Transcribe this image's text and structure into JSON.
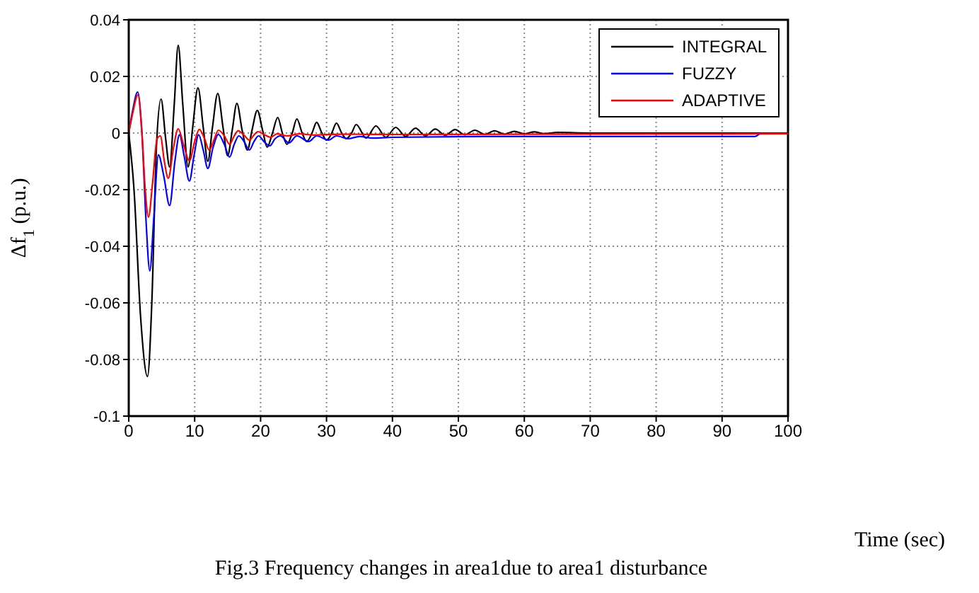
{
  "chart_data": {
    "type": "line",
    "xlabel": "Time (sec)",
    "ylabel": "Δf$_{1}$ (p.u.)",
    "annotations": [
      "Fig.3 Frequency changes in area1due to area1 disturbance"
    ],
    "xlim": [
      0,
      100
    ],
    "xticks": [
      0,
      10,
      20,
      30,
      40,
      50,
      60,
      70,
      80,
      90,
      100
    ],
    "ylim": [
      -0.1,
      0.04
    ],
    "yticks": [
      -0.1,
      -0.08,
      -0.06,
      -0.04,
      -0.02,
      0,
      0.02,
      0.04
    ],
    "grid": true,
    "legend": "top right",
    "line_style": "solid",
    "marker": "none",
    "series": [
      {
        "name": "INTEGRAL",
        "color": "#000000",
        "x": [
          0,
          0.8,
          1.8,
          2.85,
          3.5,
          4.2,
          4.9,
          5.6,
          6.2,
          6.9,
          7.5,
          8.2,
          9.0,
          9.7,
          10.5,
          11.3,
          12.0,
          12.7,
          13.5,
          14.3,
          15.0,
          15.7,
          16.4,
          17.2,
          18.0,
          18.7,
          19.5,
          20.3,
          21.0,
          21.8,
          22.6,
          23.3,
          24.0,
          24.8,
          25.5,
          26.3,
          27.0,
          27.8,
          28.5,
          29.3,
          30.0,
          30.8,
          31.5,
          32.3,
          33.0,
          33.8,
          34.5,
          36,
          37.5,
          39,
          40.5,
          42,
          43.5,
          45,
          46.5,
          48,
          49.5,
          51,
          52.5,
          54,
          55.5,
          57,
          58.5,
          60,
          61.5,
          63,
          65,
          70,
          100
        ],
        "values": [
          0,
          -0.02,
          -0.065,
          -0.086,
          -0.06,
          -0.005,
          0.012,
          -0.002,
          -0.012,
          0.01,
          0.031,
          0.01,
          -0.012,
          0.002,
          0.016,
          0.002,
          -0.01,
          0.002,
          0.014,
          0.002,
          -0.008,
          0.001,
          0.0105,
          0.001,
          -0.006,
          0.001,
          0.008,
          0.001,
          -0.005,
          0,
          0.0055,
          0,
          -0.004,
          0,
          0.005,
          0,
          -0.003,
          0,
          0.0038,
          0,
          -0.0025,
          0,
          0.0035,
          0,
          -0.002,
          0,
          0.003,
          -0.0018,
          0.0025,
          -0.0015,
          0.002,
          -0.0012,
          0.0017,
          -0.001,
          0.0014,
          -0.0008,
          0.0012,
          -0.0006,
          0.001,
          -0.0005,
          0.0008,
          -0.0004,
          0.0006,
          -0.0003,
          0.0004,
          -0.0002,
          0.0002,
          0,
          0
        ]
      },
      {
        "name": "FUZZY",
        "color": "#0000ff",
        "x": [
          0,
          0.6,
          1.35,
          2.0,
          2.6,
          3.2,
          3.8,
          4.5,
          5.3,
          6.2,
          7.0,
          7.7,
          8.4,
          9.2,
          9.9,
          10.6,
          11.3,
          12.0,
          12.8,
          13.6,
          14.5,
          15.3,
          16.0,
          16.7,
          17.5,
          18.3,
          19.0,
          19.7,
          20.5,
          21.4,
          22.2,
          23,
          24.3,
          25.5,
          27.3,
          28.5,
          30.3,
          31.5,
          33.3,
          35,
          37,
          40,
          50,
          60,
          70,
          80,
          95,
          96,
          100
        ],
        "values": [
          0,
          0.008,
          0.0145,
          0,
          -0.03,
          -0.0487,
          -0.03,
          -0.0077,
          -0.015,
          -0.0256,
          -0.01,
          -0.0006,
          -0.008,
          -0.017,
          -0.008,
          -0.0006,
          -0.006,
          -0.0125,
          -0.005,
          -0.0005,
          -0.004,
          -0.0085,
          -0.004,
          -0.001,
          -0.003,
          -0.006,
          -0.003,
          -0.001,
          -0.003,
          -0.0045,
          -0.002,
          -0.001,
          -0.0035,
          -0.001,
          -0.003,
          -0.001,
          -0.0025,
          -0.001,
          -0.002,
          -0.0012,
          -0.0018,
          -0.0015,
          -0.0013,
          -0.0012,
          -0.0012,
          -0.0012,
          -0.0012,
          0,
          0
        ]
      },
      {
        "name": "ADAPTIVE",
        "color": "#ff0000",
        "x": [
          0,
          0.6,
          1.4,
          2.0,
          2.5,
          3.0,
          3.6,
          4.3,
          4.8,
          5.4,
          6.0,
          6.8,
          7.5,
          8.3,
          9.2,
          10.0,
          10.7,
          11.5,
          12.2,
          13.0,
          13.6,
          14.5,
          15.3,
          16,
          16.6,
          17.5,
          18.3,
          19,
          19.6,
          20.5,
          21.5,
          22.5,
          24,
          26,
          28,
          32,
          40,
          60,
          100
        ],
        "values": [
          0,
          0.007,
          0.0135,
          0,
          -0.02,
          -0.0297,
          -0.018,
          -0.002,
          -0.001,
          -0.01,
          -0.016,
          -0.005,
          0.0015,
          -0.004,
          -0.0098,
          -0.003,
          0.0013,
          -0.002,
          -0.006,
          -0.002,
          0.001,
          -0.001,
          -0.004,
          -0.001,
          0.0008,
          -0.0008,
          -0.0025,
          -0.0007,
          0.0005,
          -0.0005,
          -0.0015,
          -0.0003,
          -0.001,
          -0.0003,
          -0.0007,
          -0.0004,
          -0.0005,
          -0.0004,
          -0.0003
        ]
      }
    ]
  }
}
